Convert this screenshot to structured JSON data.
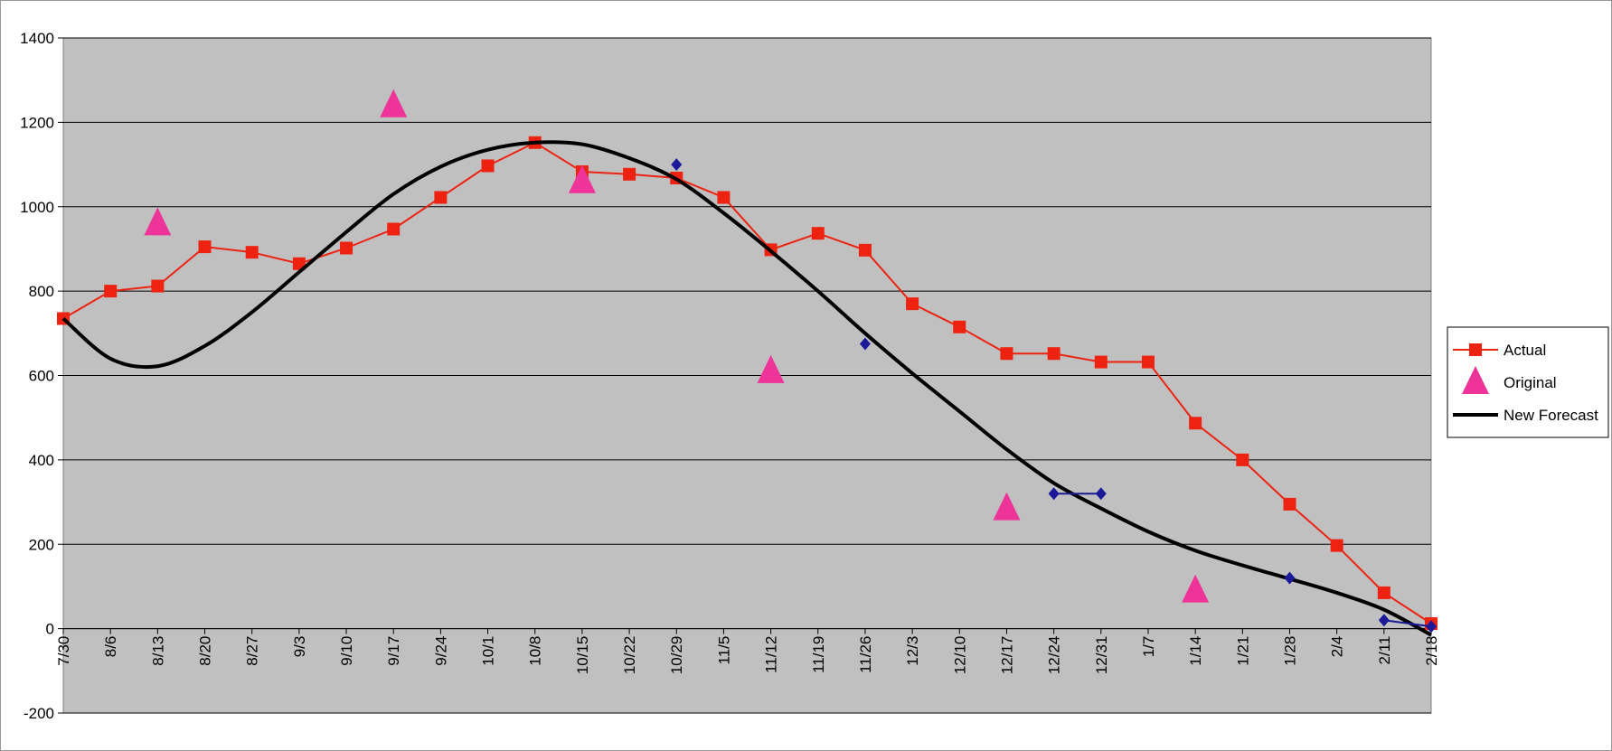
{
  "chart_data": {
    "type": "line",
    "categories": [
      "7/30",
      "8/6",
      "8/13",
      "8/20",
      "8/27",
      "9/3",
      "9/10",
      "9/17",
      "9/24",
      "10/1",
      "10/8",
      "10/15",
      "10/22",
      "10/29",
      "11/5",
      "11/12",
      "11/19",
      "11/26",
      "12/3",
      "12/10",
      "12/17",
      "12/24",
      "12/31",
      "1/7",
      "1/14",
      "1/21",
      "1/28",
      "2/4",
      "2/11",
      "2/18"
    ],
    "series": [
      {
        "name": "Actual",
        "color": "#ee2211",
        "marker": "square",
        "line": true,
        "values": [
          735,
          800,
          812,
          905,
          892,
          865,
          902,
          947,
          1022,
          1097,
          1152,
          1083,
          1077,
          1068,
          1022,
          898,
          937,
          897,
          770,
          715,
          652,
          652,
          632,
          632,
          487,
          400,
          295,
          197,
          85,
          12
        ]
      },
      {
        "name": "Original",
        "color": "#ee3399",
        "marker": "triangle",
        "line": false,
        "values": [
          null,
          null,
          960,
          null,
          null,
          null,
          null,
          1240,
          null,
          null,
          null,
          1060,
          null,
          null,
          null,
          610,
          null,
          null,
          null,
          null,
          285,
          null,
          null,
          null,
          90,
          null,
          null,
          null,
          null,
          null
        ]
      },
      {
        "name": "New Forecast",
        "color": "#000000",
        "line": true,
        "smooth": true,
        "values": [
          735,
          640,
          622,
          670,
          750,
          845,
          940,
          1030,
          1095,
          1135,
          1152,
          1148,
          1115,
          1065,
          985,
          895,
          800,
          700,
          605,
          515,
          425,
          345,
          285,
          230,
          185,
          150,
          118,
          85,
          45,
          -15
        ]
      },
      {
        "color": "#1a1a99",
        "marker": "diamond",
        "line": true,
        "values": [
          null,
          null,
          null,
          null,
          null,
          null,
          null,
          null,
          null,
          null,
          null,
          null,
          null,
          1100,
          null,
          null,
          null,
          675,
          null,
          null,
          null,
          320,
          320,
          null,
          null,
          null,
          120,
          null,
          20,
          5
        ]
      }
    ],
    "ylim": [
      -200,
      1400
    ],
    "yticks": [
      -200,
      0,
      200,
      400,
      600,
      800,
      1000,
      1200,
      1400
    ],
    "grid": true,
    "legend": "right"
  }
}
